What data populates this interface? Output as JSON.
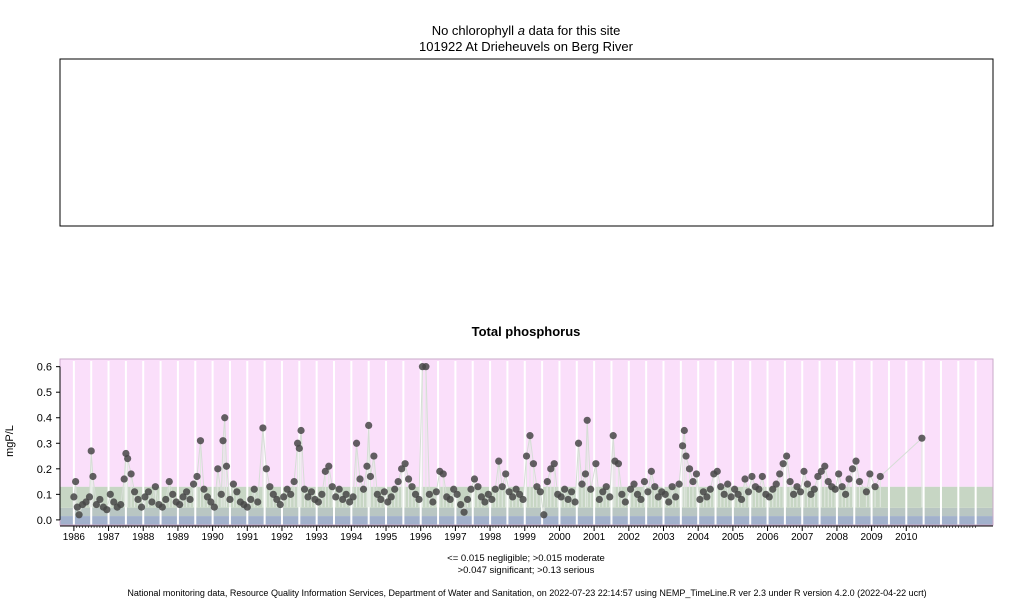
{
  "top_panel": {
    "message_prefix": "No chlorophyll ",
    "message_italic": "a",
    "message_suffix": " data for this site",
    "site": "101922 At Drieheuvels on Berg River"
  },
  "legend_lines": [
    "<= 0.015 negligible; >0.015 moderate",
    ">0.047 significant; >0.13 serious"
  ],
  "footer": "National monitoring data, Resource Quality Information Services, Department of Water and Sanitation, on 2022-07-23 22:14:57 using NEMP_TimeLine.R ver 2.3 under R version 4.2.0 (2022-04-22 ucrt)",
  "colors": {
    "serious": "#fadffa",
    "significant": "#c7d6c4",
    "moderate": "#b9c6c3",
    "negligible": "#a2b1cc",
    "points": "#474747",
    "grid": "#ffffff"
  },
  "chart_data": {
    "type": "scatter",
    "title": "Total phosphorus",
    "ylabel": "mgP/L",
    "xlabel": "",
    "xlim": [
      1985.6,
      2012.5
    ],
    "ylim": [
      -0.02,
      0.63
    ],
    "y_ticks": [
      "0.0",
      "0.1",
      "0.2",
      "0.3",
      "0.4",
      "0.5",
      "0.6"
    ],
    "x_tick_labels": [
      "1986",
      "1987",
      "1988",
      "1989",
      "1990",
      "1991",
      "1992",
      "1993",
      "1994",
      "1995",
      "1996",
      "1997",
      "1998",
      "1999",
      "2000",
      "2001",
      "2002",
      "2003",
      "2004",
      "2005",
      "2006",
      "2007",
      "2008",
      "2009",
      "2010"
    ],
    "thresholds": [
      {
        "label": "negligible",
        "max": 0.015
      },
      {
        "label": "moderate",
        "max": 0.047
      },
      {
        "label": "significant",
        "max": 0.13
      },
      {
        "label": "serious",
        "max": 0.63
      }
    ],
    "points": [
      [
        1986.0,
        0.09
      ],
      [
        1986.05,
        0.15
      ],
      [
        1986.1,
        0.05
      ],
      [
        1986.15,
        0.02
      ],
      [
        1986.25,
        0.06
      ],
      [
        1986.35,
        0.07
      ],
      [
        1986.45,
        0.09
      ],
      [
        1986.5,
        0.27
      ],
      [
        1986.55,
        0.17
      ],
      [
        1986.65,
        0.06
      ],
      [
        1986.75,
        0.08
      ],
      [
        1986.85,
        0.05
      ],
      [
        1986.95,
        0.04
      ],
      [
        1987.05,
        0.1
      ],
      [
        1987.15,
        0.07
      ],
      [
        1987.25,
        0.05
      ],
      [
        1987.35,
        0.06
      ],
      [
        1987.45,
        0.16
      ],
      [
        1987.5,
        0.26
      ],
      [
        1987.55,
        0.24
      ],
      [
        1987.65,
        0.18
      ],
      [
        1987.75,
        0.11
      ],
      [
        1987.85,
        0.08
      ],
      [
        1987.95,
        0.05
      ],
      [
        1988.05,
        0.09
      ],
      [
        1988.15,
        0.11
      ],
      [
        1988.25,
        0.07
      ],
      [
        1988.35,
        0.13
      ],
      [
        1988.45,
        0.06
      ],
      [
        1988.55,
        0.05
      ],
      [
        1988.65,
        0.08
      ],
      [
        1988.75,
        0.15
      ],
      [
        1988.85,
        0.1
      ],
      [
        1988.95,
        0.07
      ],
      [
        1989.05,
        0.06
      ],
      [
        1989.15,
        0.09
      ],
      [
        1989.25,
        0.11
      ],
      [
        1989.35,
        0.08
      ],
      [
        1989.45,
        0.14
      ],
      [
        1989.55,
        0.17
      ],
      [
        1989.65,
        0.31
      ],
      [
        1989.75,
        0.12
      ],
      [
        1989.85,
        0.09
      ],
      [
        1989.95,
        0.07
      ],
      [
        1990.05,
        0.05
      ],
      [
        1990.15,
        0.2
      ],
      [
        1990.25,
        0.1
      ],
      [
        1990.3,
        0.31
      ],
      [
        1990.35,
        0.4
      ],
      [
        1990.4,
        0.21
      ],
      [
        1990.5,
        0.08
      ],
      [
        1990.6,
        0.14
      ],
      [
        1990.7,
        0.11
      ],
      [
        1990.8,
        0.07
      ],
      [
        1990.9,
        0.06
      ],
      [
        1991.0,
        0.05
      ],
      [
        1991.1,
        0.08
      ],
      [
        1991.2,
        0.12
      ],
      [
        1991.3,
        0.07
      ],
      [
        1991.45,
        0.36
      ],
      [
        1991.55,
        0.2
      ],
      [
        1991.65,
        0.13
      ],
      [
        1991.75,
        0.1
      ],
      [
        1991.85,
        0.08
      ],
      [
        1991.95,
        0.06
      ],
      [
        1992.05,
        0.09
      ],
      [
        1992.15,
        0.12
      ],
      [
        1992.25,
        0.1
      ],
      [
        1992.35,
        0.15
      ],
      [
        1992.45,
        0.3
      ],
      [
        1992.5,
        0.28
      ],
      [
        1992.55,
        0.35
      ],
      [
        1992.65,
        0.12
      ],
      [
        1992.75,
        0.09
      ],
      [
        1992.85,
        0.11
      ],
      [
        1992.95,
        0.08
      ],
      [
        1993.05,
        0.07
      ],
      [
        1993.15,
        0.1
      ],
      [
        1993.25,
        0.19
      ],
      [
        1993.35,
        0.21
      ],
      [
        1993.45,
        0.13
      ],
      [
        1993.55,
        0.09
      ],
      [
        1993.65,
        0.12
      ],
      [
        1993.75,
        0.08
      ],
      [
        1993.85,
        0.1
      ],
      [
        1993.95,
        0.07
      ],
      [
        1994.05,
        0.09
      ],
      [
        1994.15,
        0.3
      ],
      [
        1994.25,
        0.16
      ],
      [
        1994.35,
        0.12
      ],
      [
        1994.45,
        0.21
      ],
      [
        1994.5,
        0.37
      ],
      [
        1994.55,
        0.17
      ],
      [
        1994.65,
        0.25
      ],
      [
        1994.75,
        0.1
      ],
      [
        1994.85,
        0.08
      ],
      [
        1994.95,
        0.11
      ],
      [
        1995.05,
        0.07
      ],
      [
        1995.15,
        0.09
      ],
      [
        1995.25,
        0.12
      ],
      [
        1995.35,
        0.15
      ],
      [
        1995.45,
        0.2
      ],
      [
        1995.55,
        0.22
      ],
      [
        1995.65,
        0.16
      ],
      [
        1995.75,
        0.13
      ],
      [
        1995.85,
        0.1
      ],
      [
        1995.95,
        0.08
      ],
      [
        1996.05,
        0.6
      ],
      [
        1996.15,
        0.6
      ],
      [
        1996.25,
        0.1
      ],
      [
        1996.35,
        0.07
      ],
      [
        1996.45,
        0.11
      ],
      [
        1996.55,
        0.19
      ],
      [
        1996.65,
        0.18
      ],
      [
        1996.75,
        0.09
      ],
      [
        1996.85,
        0.08
      ],
      [
        1996.95,
        0.12
      ],
      [
        1997.05,
        0.1
      ],
      [
        1997.15,
        0.06
      ],
      [
        1997.25,
        0.03
      ],
      [
        1997.35,
        0.08
      ],
      [
        1997.45,
        0.12
      ],
      [
        1997.55,
        0.16
      ],
      [
        1997.65,
        0.13
      ],
      [
        1997.75,
        0.09
      ],
      [
        1997.85,
        0.07
      ],
      [
        1997.95,
        0.1
      ],
      [
        1998.05,
        0.08
      ],
      [
        1998.15,
        0.12
      ],
      [
        1998.25,
        0.23
      ],
      [
        1998.35,
        0.13
      ],
      [
        1998.45,
        0.18
      ],
      [
        1998.55,
        0.11
      ],
      [
        1998.65,
        0.09
      ],
      [
        1998.75,
        0.12
      ],
      [
        1998.85,
        0.1
      ],
      [
        1998.95,
        0.08
      ],
      [
        1999.05,
        0.25
      ],
      [
        1999.15,
        0.33
      ],
      [
        1999.25,
        0.22
      ],
      [
        1999.35,
        0.13
      ],
      [
        1999.45,
        0.11
      ],
      [
        1999.55,
        0.02
      ],
      [
        1999.65,
        0.15
      ],
      [
        1999.75,
        0.2
      ],
      [
        1999.85,
        0.22
      ],
      [
        1999.95,
        0.1
      ],
      [
        2000.05,
        0.09
      ],
      [
        2000.15,
        0.12
      ],
      [
        2000.25,
        0.08
      ],
      [
        2000.35,
        0.11
      ],
      [
        2000.45,
        0.07
      ],
      [
        2000.55,
        0.3
      ],
      [
        2000.65,
        0.14
      ],
      [
        2000.75,
        0.18
      ],
      [
        2000.8,
        0.39
      ],
      [
        2000.9,
        0.12
      ],
      [
        2001.05,
        0.22
      ],
      [
        2001.15,
        0.08
      ],
      [
        2001.25,
        0.11
      ],
      [
        2001.35,
        0.13
      ],
      [
        2001.45,
        0.09
      ],
      [
        2001.55,
        0.33
      ],
      [
        2001.6,
        0.23
      ],
      [
        2001.7,
        0.22
      ],
      [
        2001.8,
        0.1
      ],
      [
        2001.9,
        0.07
      ],
      [
        2002.05,
        0.12
      ],
      [
        2002.15,
        0.14
      ],
      [
        2002.25,
        0.1
      ],
      [
        2002.35,
        0.08
      ],
      [
        2002.45,
        0.15
      ],
      [
        2002.55,
        0.11
      ],
      [
        2002.65,
        0.19
      ],
      [
        2002.75,
        0.13
      ],
      [
        2002.85,
        0.09
      ],
      [
        2002.95,
        0.11
      ],
      [
        2003.05,
        0.1
      ],
      [
        2003.15,
        0.07
      ],
      [
        2003.25,
        0.13
      ],
      [
        2003.35,
        0.09
      ],
      [
        2003.45,
        0.14
      ],
      [
        2003.55,
        0.29
      ],
      [
        2003.6,
        0.35
      ],
      [
        2003.65,
        0.25
      ],
      [
        2003.75,
        0.2
      ],
      [
        2003.85,
        0.15
      ],
      [
        2003.95,
        0.18
      ],
      [
        2004.05,
        0.08
      ],
      [
        2004.15,
        0.11
      ],
      [
        2004.25,
        0.09
      ],
      [
        2004.35,
        0.12
      ],
      [
        2004.45,
        0.18
      ],
      [
        2004.55,
        0.19
      ],
      [
        2004.65,
        0.13
      ],
      [
        2004.75,
        0.1
      ],
      [
        2004.85,
        0.14
      ],
      [
        2004.95,
        0.09
      ],
      [
        2005.05,
        0.12
      ],
      [
        2005.15,
        0.1
      ],
      [
        2005.25,
        0.08
      ],
      [
        2005.35,
        0.16
      ],
      [
        2005.45,
        0.11
      ],
      [
        2005.55,
        0.17
      ],
      [
        2005.65,
        0.13
      ],
      [
        2005.75,
        0.12
      ],
      [
        2005.85,
        0.17
      ],
      [
        2005.95,
        0.1
      ],
      [
        2006.05,
        0.09
      ],
      [
        2006.15,
        0.12
      ],
      [
        2006.25,
        0.14
      ],
      [
        2006.35,
        0.18
      ],
      [
        2006.45,
        0.22
      ],
      [
        2006.55,
        0.25
      ],
      [
        2006.65,
        0.15
      ],
      [
        2006.75,
        0.1
      ],
      [
        2006.85,
        0.13
      ],
      [
        2006.95,
        0.11
      ],
      [
        2007.05,
        0.19
      ],
      [
        2007.15,
        0.14
      ],
      [
        2007.25,
        0.1
      ],
      [
        2007.35,
        0.12
      ],
      [
        2007.45,
        0.17
      ],
      [
        2007.55,
        0.19
      ],
      [
        2007.65,
        0.21
      ],
      [
        2007.75,
        0.15
      ],
      [
        2007.85,
        0.13
      ],
      [
        2007.95,
        0.12
      ],
      [
        2008.05,
        0.18
      ],
      [
        2008.15,
        0.13
      ],
      [
        2008.25,
        0.1
      ],
      [
        2008.35,
        0.16
      ],
      [
        2008.45,
        0.2
      ],
      [
        2008.55,
        0.23
      ],
      [
        2008.65,
        0.15
      ],
      [
        2008.85,
        0.11
      ],
      [
        2008.95,
        0.18
      ],
      [
        2009.1,
        0.13
      ],
      [
        2009.25,
        0.17
      ],
      [
        2010.45,
        0.32
      ]
    ]
  }
}
